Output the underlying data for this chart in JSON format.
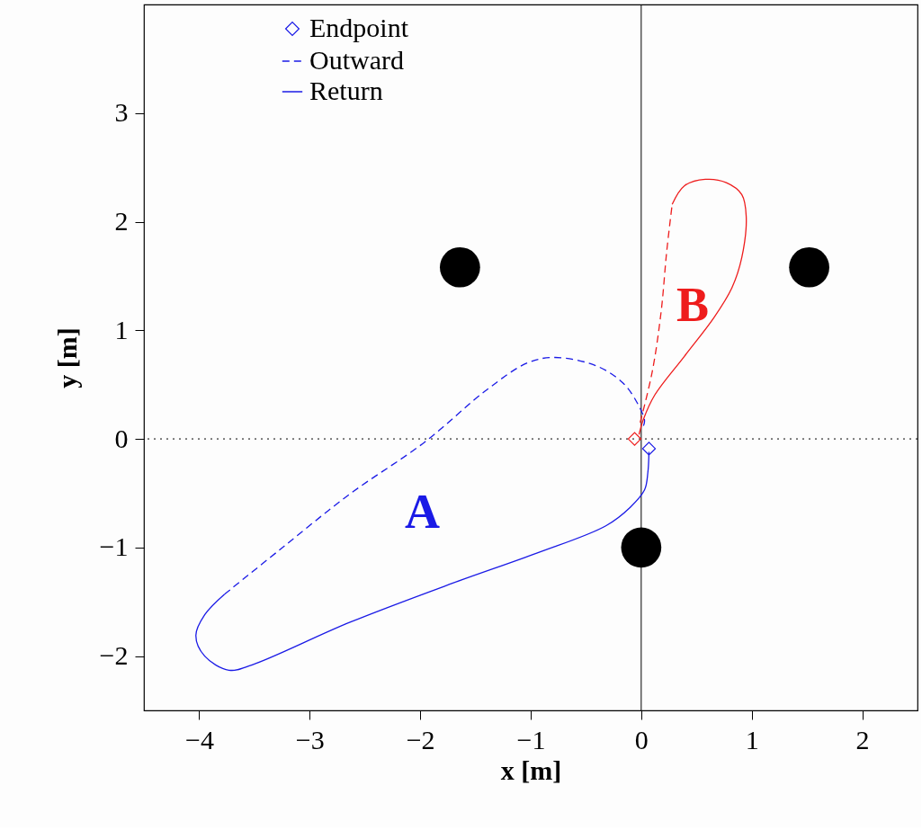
{
  "chart_data": {
    "type": "line",
    "xlabel": "x [m]",
    "ylabel": "y [m]",
    "xlim": [
      -4.5,
      2.5
    ],
    "ylim": [
      -2.5,
      4
    ],
    "xticks": [
      -4,
      -3,
      -2,
      -1,
      0,
      1,
      2
    ],
    "yticks": [
      -2,
      -1,
      0,
      1,
      2,
      3
    ],
    "grid": false,
    "legend": "top",
    "ref_lines": [
      {
        "axis": "x",
        "value": 0,
        "line_style": "solid",
        "color": "#000000"
      },
      {
        "axis": "y",
        "value": 0,
        "line_style": "dotted",
        "color": "#000000"
      }
    ],
    "annotations": [
      "A",
      "B"
    ],
    "series": [
      {
        "name": "Outward",
        "line_style": "dashed",
        "color": "#1a1ae6",
        "x": [
          0.02,
          0.03,
          -0.03,
          -0.16,
          -0.4,
          -0.78,
          -1.03,
          -1.4,
          -1.96,
          -2.64,
          -3.27,
          -3.77
        ],
        "values": [
          0.12,
          0.17,
          0.32,
          0.51,
          0.67,
          0.75,
          0.7,
          0.45,
          -0.03,
          -0.51,
          -1.02,
          -1.43
        ]
      },
      {
        "name": "Return",
        "line_style": "solid",
        "color": "#1a1ae6",
        "x": [
          -3.77,
          -3.95,
          -4.03,
          -3.95,
          -3.73,
          -3.52,
          -2.64,
          -1.71,
          -0.94,
          -0.32,
          -0.1,
          0.03,
          0.06,
          0.07
        ],
        "values": [
          -1.43,
          -1.62,
          -1.81,
          -2.0,
          -2.13,
          -2.08,
          -1.69,
          -1.33,
          -1.05,
          -0.8,
          -0.63,
          -0.47,
          -0.31,
          -0.12
        ]
      },
      {
        "line_style": "dashed",
        "color": "#ee1c1c",
        "x": [
          -0.01,
          0.1,
          0.18,
          0.23,
          0.28
        ],
        "values": [
          0.15,
          0.62,
          1.17,
          1.72,
          2.16
        ]
      },
      {
        "line_style": "solid",
        "color": "#ee1c1c",
        "x": [
          0.28,
          0.39,
          0.58,
          0.77,
          0.91,
          0.95,
          0.91,
          0.82,
          0.66,
          0.39,
          0.12,
          0.02,
          -0.02
        ],
        "values": [
          2.16,
          2.33,
          2.39,
          2.36,
          2.25,
          2.05,
          1.67,
          1.39,
          1.12,
          0.76,
          0.4,
          0.18,
          0.04
        ]
      },
      {
        "name": "Endpoint",
        "type": "scatter",
        "marker": "diamond",
        "color": "#1a1ae6",
        "x": [
          0.07
        ],
        "values": [
          -0.09
        ]
      },
      {
        "type": "scatter",
        "marker": "diamond",
        "color": "#ee1c1c",
        "x": [
          -0.06
        ],
        "values": [
          0.0
        ]
      },
      {
        "type": "scatter",
        "marker": "circle",
        "color": "#000000",
        "x": [
          -1.64,
          1.52,
          0.0
        ],
        "values": [
          1.58,
          1.58,
          -1.0
        ]
      }
    ]
  }
}
